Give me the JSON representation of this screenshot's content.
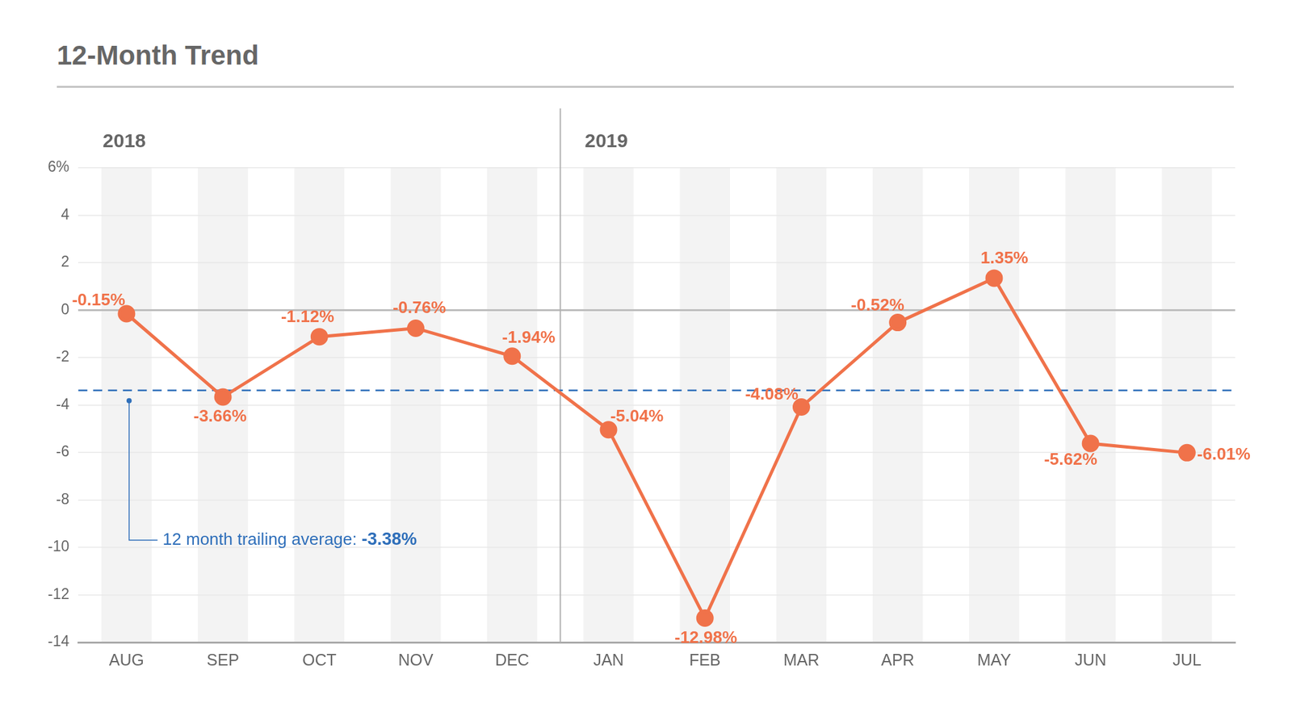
{
  "chart_data": {
    "type": "line",
    "title": "12-Month Trend",
    "categories": [
      "AUG",
      "SEP",
      "OCT",
      "NOV",
      "DEC",
      "JAN",
      "FEB",
      "MAR",
      "APR",
      "MAY",
      "JUN",
      "JUL"
    ],
    "values": [
      -0.15,
      -3.66,
      -1.12,
      -0.76,
      -1.94,
      -5.04,
      -12.98,
      -4.08,
      -0.52,
      1.35,
      -5.62,
      -6.01
    ],
    "value_labels": [
      "-0.15%",
      "-3.66%",
      "-1.12%",
      "-0.76%",
      "-1.94%",
      "-5.04%",
      "-12.98%",
      "-4.08%",
      "-0.52%",
      "1.35%",
      "-5.62%",
      "-6.01%"
    ],
    "color": "#f0724a",
    "marker": "circle",
    "data_labels": true,
    "ylim": [
      -14,
      6
    ],
    "yticks": [
      {
        "value": 6,
        "label": "6%"
      },
      4,
      2,
      0,
      -2,
      -4,
      -6,
      -8,
      -10,
      -12,
      -14
    ],
    "grid": true,
    "groups": [
      {
        "label": "2018",
        "start": "AUG"
      },
      {
        "label": "2019",
        "start": "JAN"
      }
    ],
    "average": {
      "value": -3.38,
      "label": "12 month trailing average:",
      "value_label": "-3.38%",
      "color": "#2f6fba",
      "line_style": "dashed"
    }
  }
}
